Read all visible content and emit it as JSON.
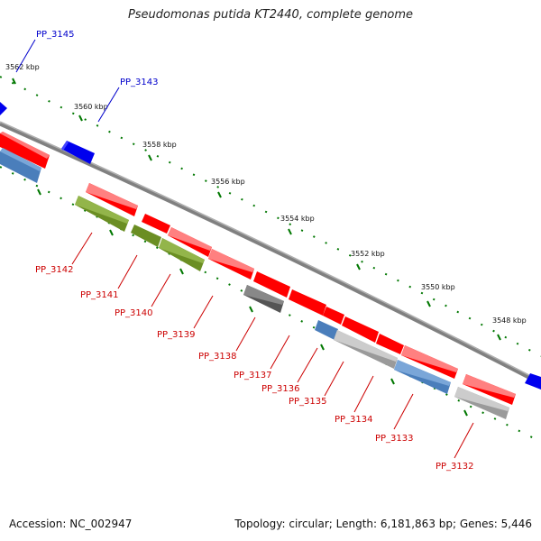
{
  "title": "Pseudomonas putida KT2440, complete genome",
  "footer": {
    "accession": "Accession: NC_002947",
    "summary": "Topology: circular; Length: 6,181,863 bp; Genes: 5,446"
  },
  "colors": {
    "forward_gene": "#ff0000",
    "reverse_gene_blue": "#0000ee",
    "cog_steelblue": "#4a7ebb",
    "cog_olive": "#6b8e23",
    "cog_gray": "#9a9a9a",
    "cog_darkgray": "#555555",
    "backbone": "#808080",
    "tick": "#007700",
    "label_red": "#cc0000",
    "label_blue": "#0000cc"
  },
  "kbp_ticks": [
    "3562 kbp",
    "3560 kbp",
    "3558 kbp",
    "3556 kbp",
    "3554 kbp",
    "3552 kbp",
    "3550 kbp",
    "3548 kbp"
  ],
  "labels_blue": [
    "PP_3145",
    "PP_3143"
  ],
  "labels_red": [
    "PP_3142",
    "PP_3141",
    "PP_3140",
    "PP_3139",
    "PP_3138",
    "PP_3137",
    "PP_3136",
    "PP_3135",
    "PP_3134",
    "PP_3133",
    "PP_3132"
  ]
}
